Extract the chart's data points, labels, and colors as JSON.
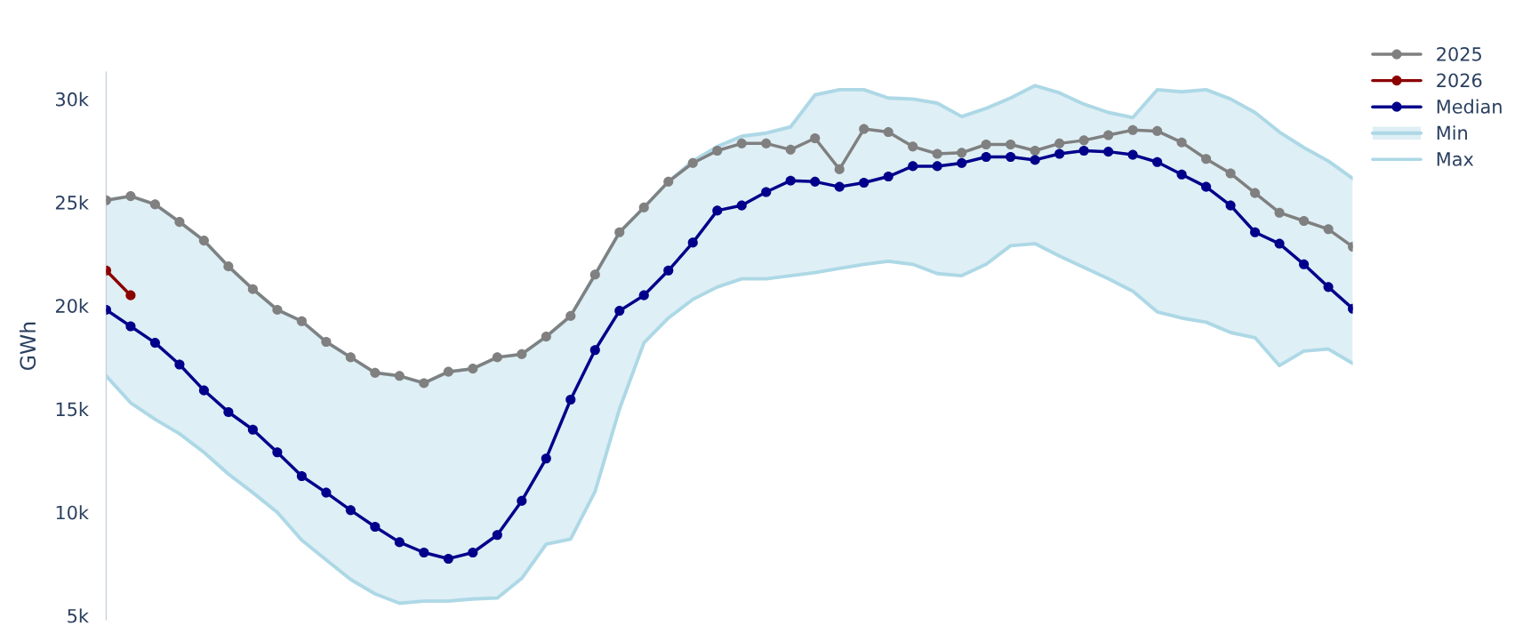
{
  "chart_data": {
    "type": "line",
    "ylabel": "GWh",
    "categories": [
      null,
      null,
      null,
      null,
      null,
      null,
      null,
      null,
      null,
      null,
      null,
      null,
      null,
      null,
      null,
      null,
      null,
      null,
      null,
      null,
      null,
      null,
      null,
      null,
      null,
      null,
      null,
      null,
      null,
      null,
      null,
      null,
      null,
      null,
      null,
      null,
      null,
      null,
      null,
      null,
      null,
      null,
      null,
      null,
      null,
      null,
      null,
      null,
      null,
      null,
      null,
      null
    ],
    "series": [
      {
        "name": "2025",
        "color": "#808080",
        "marker": "circle",
        "values": [
          25100,
          25300,
          24900,
          24050,
          23150,
          21900,
          20800,
          19800,
          19250,
          18250,
          17500,
          16750,
          16600,
          16250,
          16800,
          16950,
          17500,
          17650,
          18500,
          19500,
          21500,
          23550,
          24750,
          26000,
          26900,
          27500,
          27850,
          27850,
          27550,
          28100,
          26600,
          28550,
          28400,
          27700,
          27350,
          27400,
          27800,
          27800,
          27500,
          27850,
          28000,
          28250,
          28500,
          28450,
          27900,
          27100,
          26400,
          25450,
          24500,
          24100,
          23700,
          22850
        ]
      },
      {
        "name": "2026",
        "color": "#8b0000",
        "marker": "circle",
        "values": [
          21700,
          20500,
          null,
          null,
          null,
          null,
          null,
          null,
          null,
          null,
          null,
          null,
          null,
          null,
          null,
          null,
          null,
          null,
          null,
          null,
          null,
          null,
          null,
          null,
          null,
          null,
          null,
          null,
          null,
          null,
          null,
          null,
          null,
          null,
          null,
          null,
          null,
          null,
          null,
          null,
          null,
          null,
          null,
          null,
          null,
          null,
          null,
          null,
          null,
          null,
          null,
          null
        ]
      },
      {
        "name": "Median",
        "color": "#00008b",
        "marker": "circle",
        "values": [
          19800,
          19000,
          18200,
          17150,
          15900,
          14850,
          14000,
          12900,
          11750,
          10950,
          10100,
          9300,
          8550,
          8050,
          7750,
          8050,
          8900,
          10550,
          12600,
          15450,
          17850,
          19750,
          20500,
          21700,
          23050,
          24600,
          24850,
          25500,
          26050,
          26000,
          25750,
          25950,
          26250,
          26750,
          26750,
          26900,
          27200,
          27200,
          27050,
          27350,
          27500,
          27450,
          27300,
          26950,
          26350,
          25750,
          24850,
          23550,
          23000,
          22000,
          20900,
          19850
        ]
      },
      {
        "name": "Min",
        "color": "#add8e6",
        "marker": "none",
        "values": [
          16600,
          15300,
          14500,
          13800,
          12900,
          11850,
          10950,
          10000,
          8650,
          7700,
          6750,
          6050,
          5600,
          5700,
          5700,
          5800,
          5850,
          6800,
          8450,
          8700,
          11000,
          15000,
          18200,
          19400,
          20300,
          20900,
          21300,
          21300,
          21450,
          21600,
          21800,
          22000,
          22150,
          22000,
          21550,
          21450,
          22000,
          22900,
          23000,
          22400,
          21850,
          21300,
          20700,
          19700,
          19400,
          19200,
          18700,
          18450,
          17100,
          17800,
          17900,
          17200
        ],
        "lower": [
          16600,
          15300,
          14500,
          13800,
          12900,
          11850,
          10950,
          10000,
          8650,
          7700,
          6750,
          6050,
          5600,
          5700,
          5700,
          5800,
          5850,
          6800,
          8450,
          8700,
          11000,
          15000,
          18200,
          19400,
          20300,
          20900,
          21300,
          21300,
          21450,
          21600,
          21800,
          22000,
          22150,
          22000,
          21550,
          21450,
          22000,
          22900,
          23000,
          22400,
          21850,
          21300,
          20700,
          19700,
          19400,
          19200,
          18700,
          18450,
          17100,
          17800,
          17900,
          17200
        ],
        "upper": [
          25100,
          25300,
          24900,
          24050,
          23150,
          21900,
          20800,
          19800,
          19250,
          18250,
          17500,
          16750,
          16600,
          16250,
          16800,
          16950,
          17500,
          17650,
          18500,
          19500,
          21500,
          23550,
          24750,
          26000,
          27000,
          27700,
          28200,
          28350,
          28650,
          30200,
          30450,
          30450,
          30050,
          30000,
          29800,
          29150,
          29550,
          30050,
          30650,
          30300,
          29750,
          29350,
          29100,
          30450,
          30350,
          30450,
          30000,
          29350,
          28400,
          27650,
          27000,
          26150
        ]
      },
      {
        "name": "Max",
        "color": "#add8e6",
        "marker": "none",
        "values": [
          25100,
          25300,
          24900,
          24050,
          23150,
          21900,
          20800,
          19800,
          19250,
          18250,
          17500,
          16750,
          16600,
          16250,
          16800,
          16950,
          17500,
          17650,
          18500,
          19500,
          21500,
          23550,
          24750,
          26000,
          27000,
          27700,
          28200,
          28350,
          28650,
          30200,
          30450,
          30450,
          30050,
          30000,
          29800,
          29150,
          29550,
          30050,
          30650,
          30300,
          29750,
          29350,
          29100,
          30450,
          30350,
          30450,
          30000,
          29350,
          28400,
          27650,
          27000,
          26150
        ]
      }
    ],
    "ylim": [
      4800,
      31300
    ],
    "yticks": [
      {
        "value": 5000,
        "label": "5k"
      },
      {
        "value": 10000,
        "label": "10k"
      },
      {
        "value": 15000,
        "label": "15k"
      },
      {
        "value": 20000,
        "label": "20k"
      },
      {
        "value": 25000,
        "label": "25k"
      },
      {
        "value": 30000,
        "label": "30k"
      }
    ],
    "tick_labels": "y",
    "grid": false,
    "legend": "top right",
    "line_style": "solid"
  }
}
